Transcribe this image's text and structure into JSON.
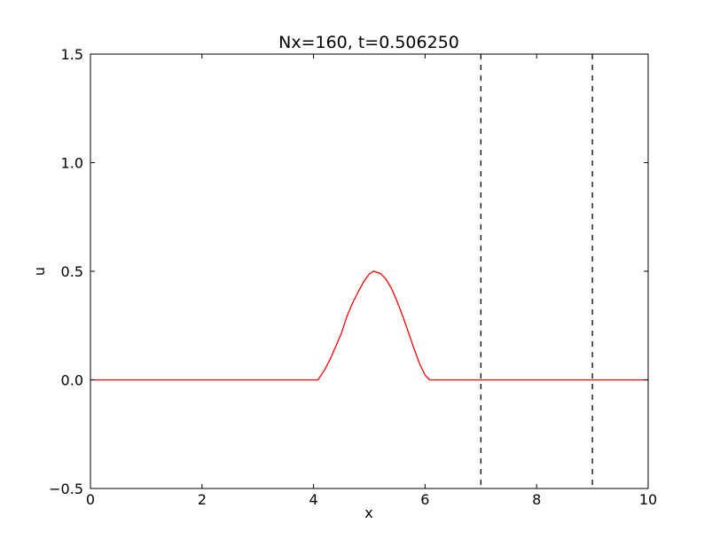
{
  "chart_data": {
    "type": "line",
    "title": "Nx=160, t=0.506250",
    "xlabel": "x",
    "ylabel": "u",
    "xlim": [
      0,
      10
    ],
    "ylim": [
      -0.5,
      1.5
    ],
    "xticks": [
      0,
      2,
      4,
      6,
      8,
      10
    ],
    "xtick_labels": [
      "0",
      "2",
      "4",
      "6",
      "8",
      "10"
    ],
    "yticks": [
      -0.5,
      0.0,
      0.5,
      1.0,
      1.5
    ],
    "ytick_labels": [
      "−0.5",
      "0.0",
      "0.5",
      "1.0",
      "1.5"
    ],
    "grid": false,
    "series": [
      {
        "color": "#ff0000",
        "style": "solid",
        "x": [
          0,
          4.08,
          4.2,
          4.3,
          4.4,
          4.5,
          4.6,
          4.7,
          4.8,
          4.9,
          5.0,
          5.08,
          5.2,
          5.3,
          5.4,
          5.5,
          5.6,
          5.7,
          5.8,
          5.9,
          6.0,
          6.08,
          10
        ],
        "y": [
          0,
          0,
          0.046,
          0.096,
          0.155,
          0.215,
          0.293,
          0.354,
          0.405,
          0.452,
          0.488,
          0.5,
          0.49,
          0.463,
          0.42,
          0.36,
          0.293,
          0.22,
          0.145,
          0.075,
          0.022,
          0,
          0
        ]
      }
    ],
    "vlines": [
      {
        "x": 7,
        "color": "#000000",
        "style": "dashed"
      },
      {
        "x": 9,
        "color": "#000000",
        "style": "dashed"
      }
    ]
  }
}
